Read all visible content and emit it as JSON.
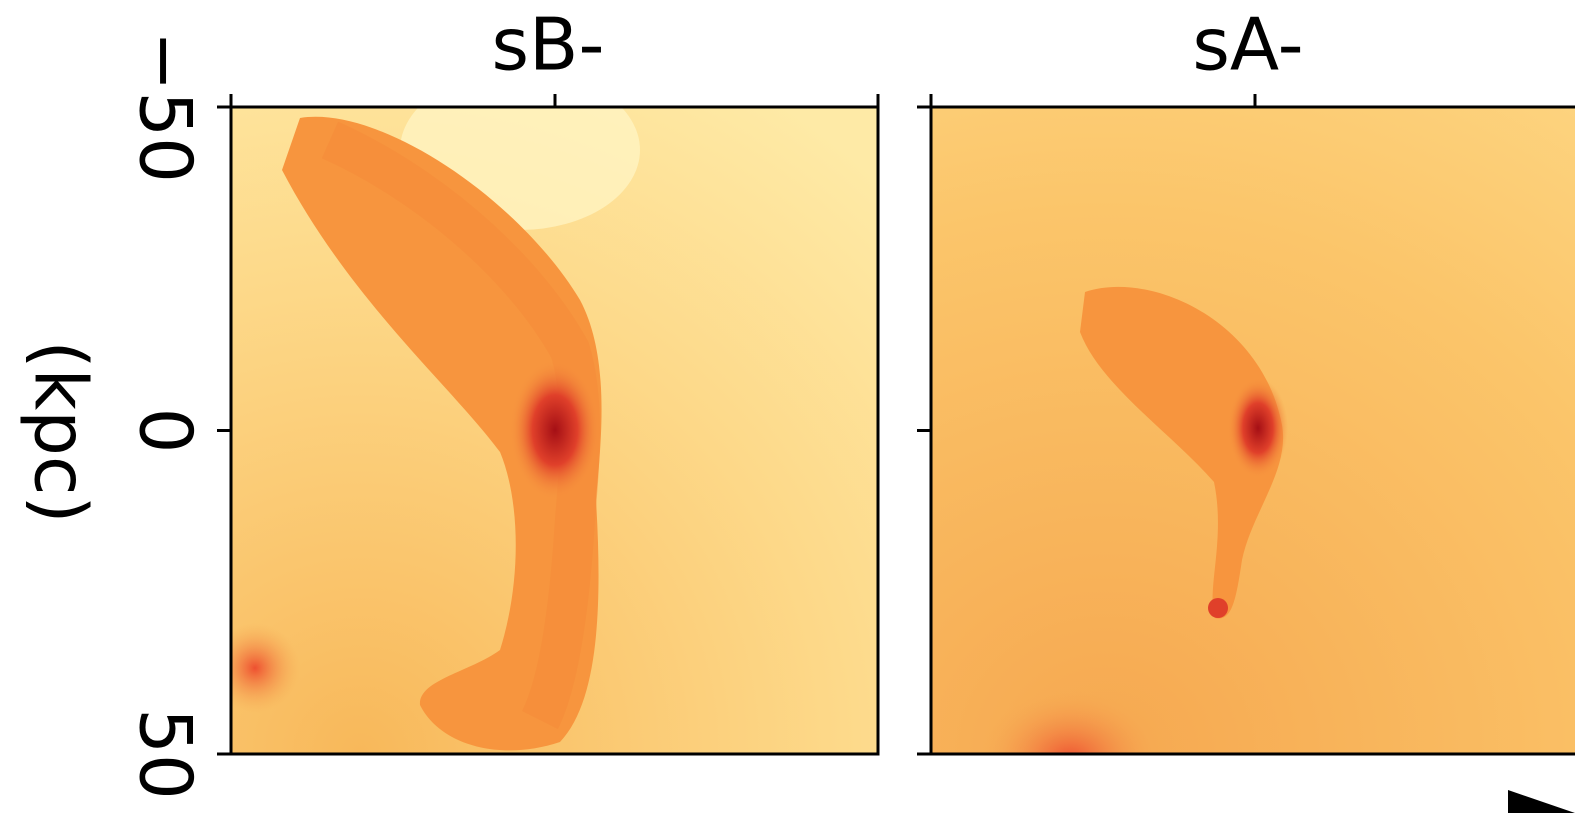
{
  "chart_data": [
    {
      "type": "image",
      "title": "sB-",
      "ylabel": "(kpc)",
      "ylim": [
        -50,
        50
      ],
      "yticks": [
        {
          "value": -50,
          "label": "−50"
        },
        0,
        50
      ]
    },
    {
      "type": "image",
      "title": "sA-"
    }
  ]
}
